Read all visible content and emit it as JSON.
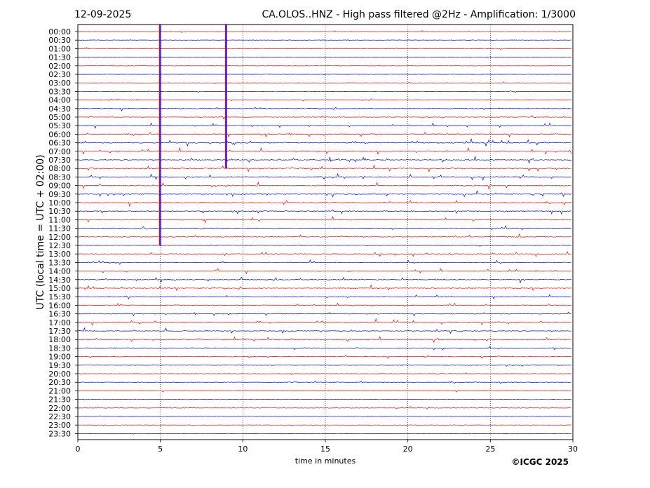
{
  "chart_data": {
    "type": "seismogram",
    "date": "12-09-2025",
    "title": "CA.OLOS..HNZ - High pass filtered @2Hz - Amplification: 1/3000",
    "xlabel": "time in minutes",
    "ylabel": "UTC (local time = UTC + 02:00)",
    "copyright": "©ICGC 2025",
    "xlim": [
      0,
      30
    ],
    "x_ticks": [
      "0",
      "5",
      "10",
      "15",
      "20",
      "25",
      "30"
    ],
    "x_grid_minutes": [
      5,
      10,
      15,
      20,
      25
    ],
    "row_labels": [
      "00:00",
      "00:30",
      "01:00",
      "01:30",
      "02:00",
      "02:30",
      "03:00",
      "03:30",
      "04:00",
      "04:30",
      "05:00",
      "05:30",
      "06:00",
      "06:30",
      "07:00",
      "07:30",
      "08:00",
      "08:30",
      "09:00",
      "09:30",
      "10:00",
      "10:30",
      "11:00",
      "11:30",
      "12:00",
      "12:30",
      "13:00",
      "13:30",
      "14:00",
      "14:30",
      "15:00",
      "15:30",
      "16:00",
      "16:30",
      "17:00",
      "17:30",
      "18:00",
      "18:30",
      "19:00",
      "19:30",
      "20:00",
      "20:30",
      "21:00",
      "21:30",
      "22:00",
      "22:30",
      "23:00",
      "23:30"
    ],
    "row_colors": [
      "#ff0000",
      "#0000ff"
    ],
    "activity_level": [
      0.1,
      0.15,
      0.1,
      0.05,
      0.1,
      0.05,
      0.1,
      0.1,
      0.3,
      0.4,
      0.5,
      0.8,
      0.8,
      0.9,
      0.9,
      0.8,
      0.9,
      0.9,
      0.9,
      0.8,
      0.8,
      0.8,
      0.7,
      0.6,
      0.6,
      0.4,
      0.5,
      0.5,
      0.6,
      0.7,
      0.8,
      0.6,
      0.6,
      0.5,
      0.7,
      0.7,
      0.6,
      0.5,
      0.4,
      0.4,
      0.3,
      0.3,
      0.2,
      0.2,
      0.2,
      0.15,
      0.05,
      0.05
    ],
    "events": [
      {
        "minute_start": 4.95,
        "minute_end": 5.02,
        "row_start": 0,
        "row_end": 25
      },
      {
        "minute_start": 8.95,
        "minute_end": 9.02,
        "row_start": 0,
        "row_end": 16
      }
    ]
  }
}
